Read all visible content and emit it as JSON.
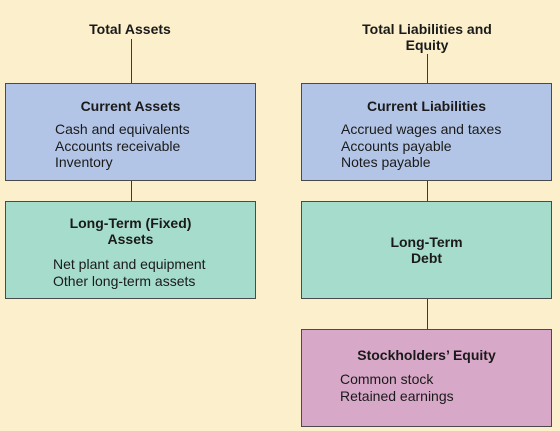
{
  "colors": {
    "background": "#fbefcc",
    "current_box": "#b3c5e6",
    "fixed_box": "#a6dccb",
    "debt_box": "#a6dccb",
    "equity_box": "#d8a8c8",
    "connector": "#3a3a3a"
  },
  "assets": {
    "heading": "Total Assets",
    "current": {
      "title": "Current Assets",
      "items": [
        "Cash and equivalents",
        "Accounts receivable",
        "Inventory"
      ]
    },
    "fixed": {
      "title": "Long-Term (Fixed)\nAssets",
      "items": [
        "Net plant and equipment",
        "Other long-term assets"
      ]
    }
  },
  "liabilities": {
    "heading": "Total Liabilities and\nEquity",
    "current": {
      "title": "Current Liabilities",
      "items": [
        "Accrued wages and taxes",
        "Accounts payable",
        "Notes payable"
      ]
    },
    "debt": {
      "title": "Long-Term\nDebt"
    },
    "equity": {
      "title": "Stockholders’ Equity",
      "items": [
        "Common stock",
        "Retained earnings"
      ]
    }
  }
}
